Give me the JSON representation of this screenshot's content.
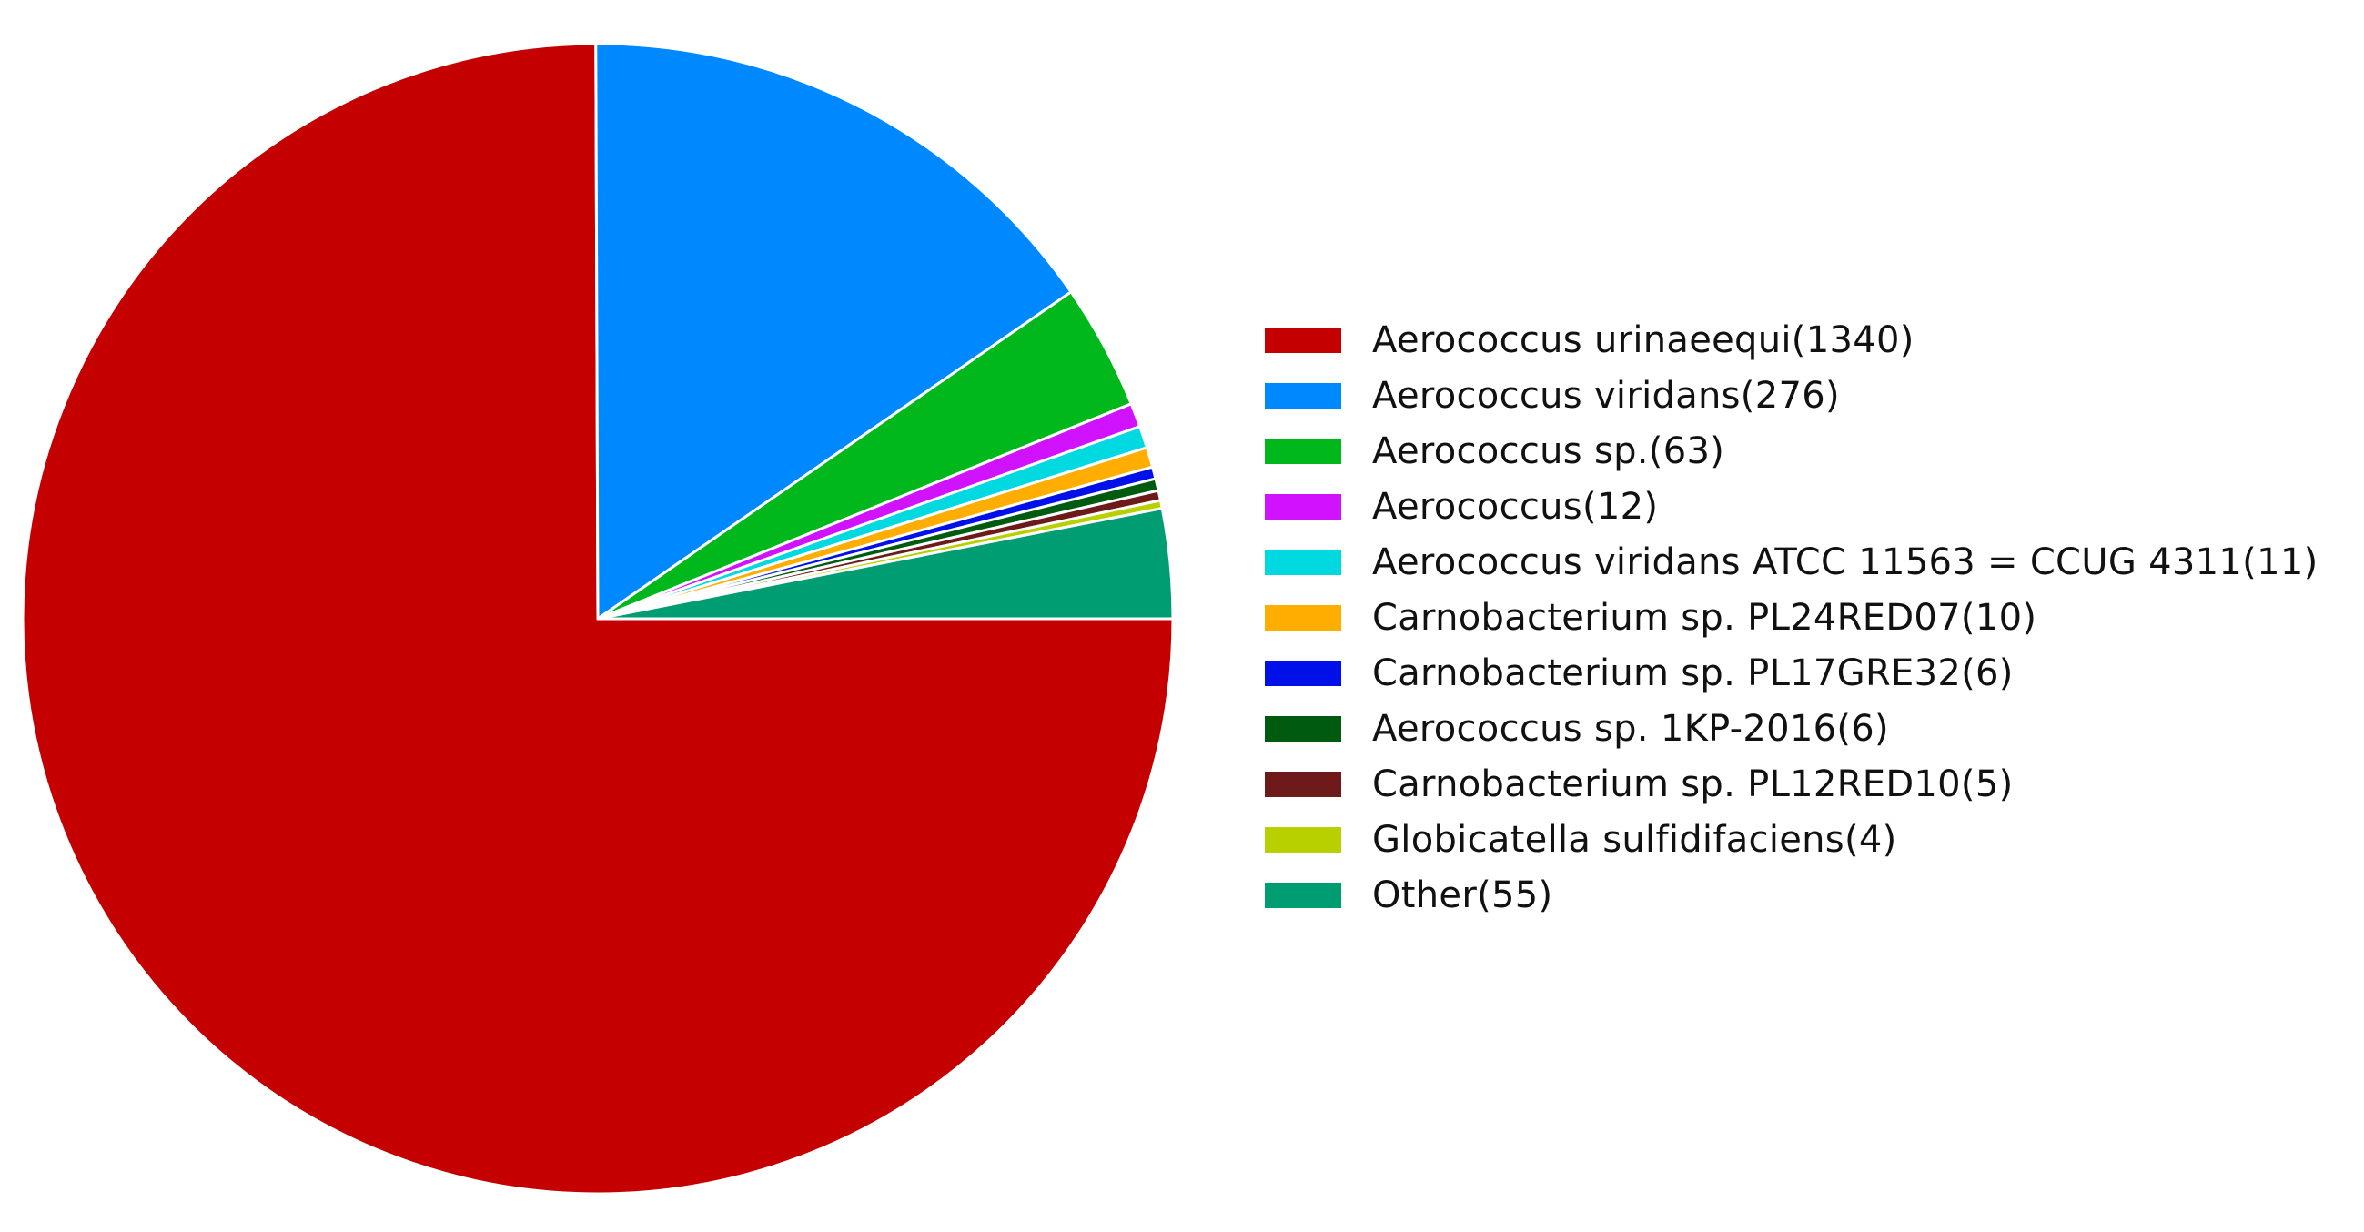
{
  "chart_data": {
    "type": "pie",
    "title": "",
    "legend_position": "right",
    "start_angle_deg": 0,
    "direction": "clockwise",
    "slices": [
      {
        "label": "Aerococcus urinaeequi(1340)",
        "value": 1340,
        "color": "#c40000"
      },
      {
        "label": "Aerococcus viridans(276)",
        "value": 276,
        "color": "#0088ff"
      },
      {
        "label": "Aerococcus sp.(63)",
        "value": 63,
        "color": "#00b81c"
      },
      {
        "label": "Aerococcus(12)",
        "value": 12,
        "color": "#d112ff"
      },
      {
        "label": "Aerococcus viridans ATCC 11563 = CCUG 4311(11)",
        "value": 11,
        "color": "#00d9e0"
      },
      {
        "label": "Carnobacterium sp. PL24RED07(10)",
        "value": 10,
        "color": "#ffae00"
      },
      {
        "label": "Carnobacterium sp. PL17GRE32(6)",
        "value": 6,
        "color": "#0010e8"
      },
      {
        "label": "Aerococcus sp. 1KP-2016(6)",
        "value": 6,
        "color": "#005a10"
      },
      {
        "label": "Carnobacterium sp. PL12RED10(5)",
        "value": 5,
        "color": "#6e1a1a"
      },
      {
        "label": "Globicatella sulfidifaciens(4)",
        "value": 4,
        "color": "#b8d000"
      },
      {
        "label": "Other(55)",
        "value": 55,
        "color": "#009c72"
      }
    ]
  }
}
